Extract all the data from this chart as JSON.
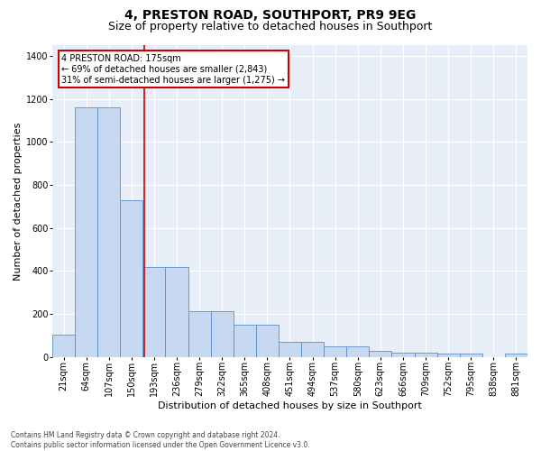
{
  "title1": "4, PRESTON ROAD, SOUTHPORT, PR9 9EG",
  "title2": "Size of property relative to detached houses in Southport",
  "xlabel": "Distribution of detached houses by size in Southport",
  "ylabel": "Number of detached properties",
  "footnote": "Contains HM Land Registry data © Crown copyright and database right 2024.\nContains public sector information licensed under the Open Government Licence v3.0.",
  "categories": [
    "21sqm",
    "64sqm",
    "107sqm",
    "150sqm",
    "193sqm",
    "236sqm",
    "279sqm",
    "322sqm",
    "365sqm",
    "408sqm",
    "451sqm",
    "494sqm",
    "537sqm",
    "580sqm",
    "623sqm",
    "666sqm",
    "709sqm",
    "752sqm",
    "795sqm",
    "838sqm",
    "881sqm"
  ],
  "bar_values": [
    105,
    1160,
    1160,
    730,
    420,
    420,
    215,
    215,
    150,
    150,
    70,
    70,
    48,
    48,
    30,
    18,
    18,
    15,
    15,
    0,
    15
  ],
  "bar_color": "#c6d9f0",
  "bar_edge_color": "#5b8ec9",
  "annotation_text": "4 PRESTON ROAD: 175sqm\n← 69% of detached houses are smaller (2,843)\n31% of semi-detached houses are larger (1,275) →",
  "annotation_box_color": "#ffffff",
  "annotation_border_color": "#cc0000",
  "prop_line_color": "#cc0000",
  "ylim": [
    0,
    1450
  ],
  "yticks": [
    0,
    200,
    400,
    600,
    800,
    1000,
    1200,
    1400
  ],
  "background_color": "#e8eef8",
  "grid_color": "#ffffff",
  "title1_fontsize": 10,
  "title2_fontsize": 9,
  "xlabel_fontsize": 8,
  "ylabel_fontsize": 8,
  "tick_fontsize": 7,
  "annot_fontsize": 7,
  "footnote_fontsize": 5.5
}
